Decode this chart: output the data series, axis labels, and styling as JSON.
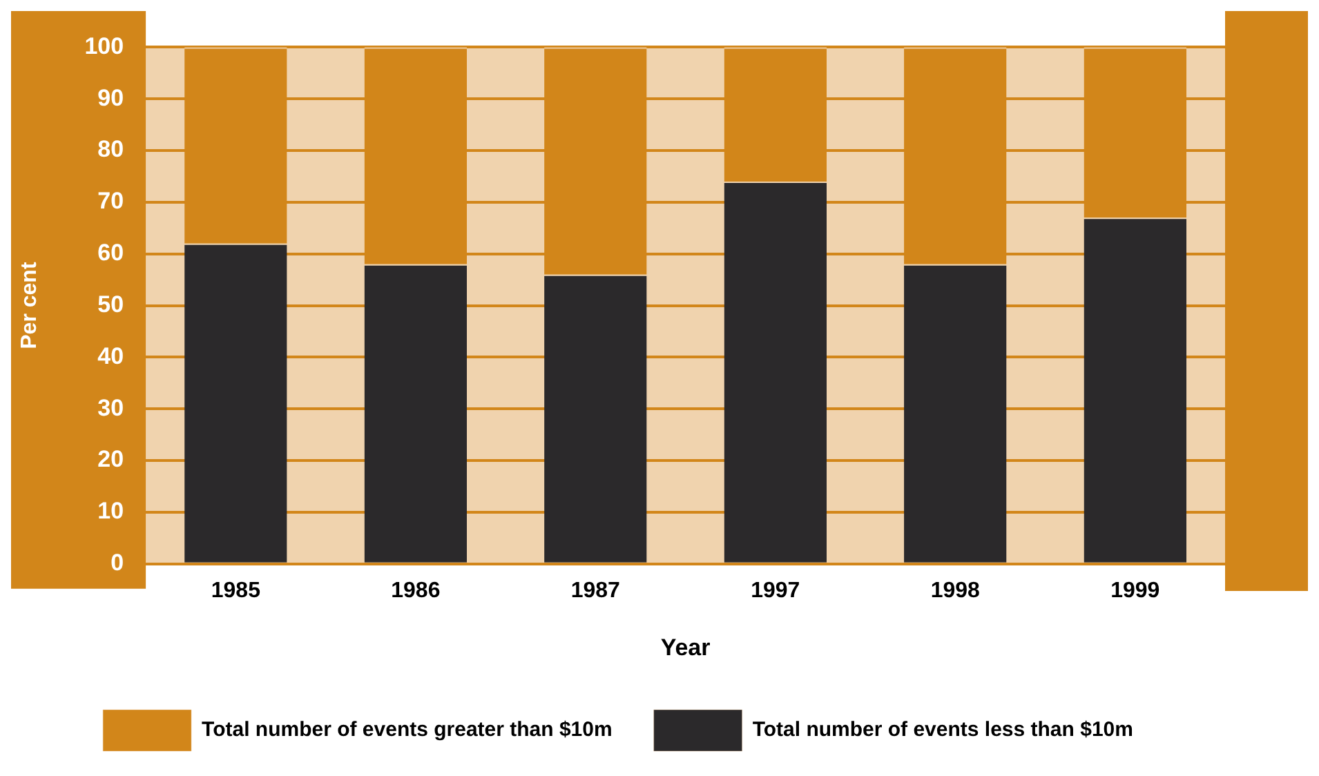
{
  "chart_data": {
    "type": "bar",
    "stacked": true,
    "xlabel": "Year",
    "ylabel": "Per cent",
    "categories": [
      "1985",
      "1986",
      "1987",
      "1997",
      "1998",
      "1999"
    ],
    "series": [
      {
        "name": "Total number of events less than $10m",
        "color": "#2b292b",
        "values": [
          62,
          58,
          56,
          74,
          58,
          67
        ]
      },
      {
        "name": "Total number of events greater than $10m",
        "color": "#d2861a",
        "values": [
          38,
          42,
          44,
          26,
          42,
          33
        ]
      }
    ],
    "ylim": [
      0,
      100
    ],
    "yticks": [
      0,
      10,
      20,
      30,
      40,
      50,
      60,
      70,
      80,
      90,
      100
    ],
    "grid": "y",
    "legend": "bottom"
  }
}
